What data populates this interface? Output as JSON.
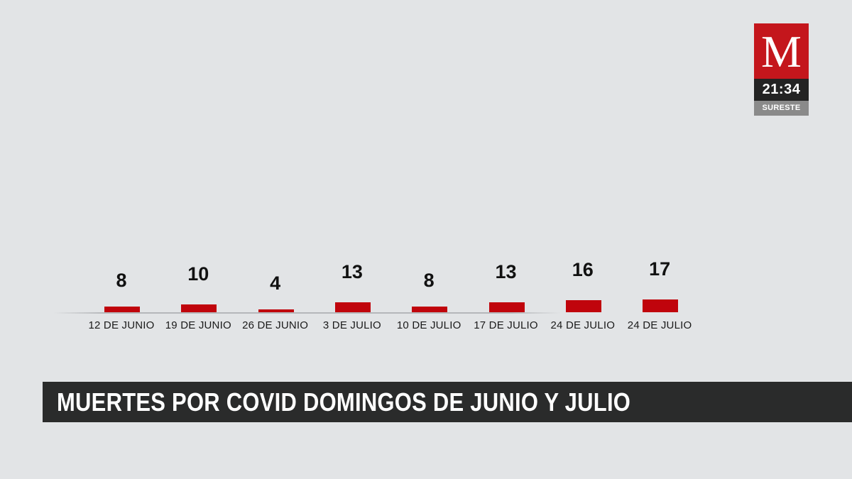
{
  "logo": {
    "letter": "M",
    "time": "21:34",
    "region": "SURESTE",
    "brand_color": "#c4161c"
  },
  "title": "MUERTES POR COVID DOMINGOS DE JUNIO Y JULIO",
  "chart_data": {
    "type": "bar",
    "title": "MUERTES POR COVID DOMINGOS DE JUNIO Y JULIO",
    "xlabel": "",
    "ylabel": "",
    "categories": [
      "12 DE JUNIO",
      "19 DE JUNIO",
      "26 DE JUNIO",
      "3 DE JULIO",
      "10 DE JULIO",
      "17 DE JULIO",
      "24 DE JULIO",
      "24 DE JULIO"
    ],
    "values": [
      8,
      10,
      4,
      13,
      8,
      13,
      16,
      17
    ],
    "bar_color": "#c0040c",
    "grid": false,
    "legend": null
  }
}
